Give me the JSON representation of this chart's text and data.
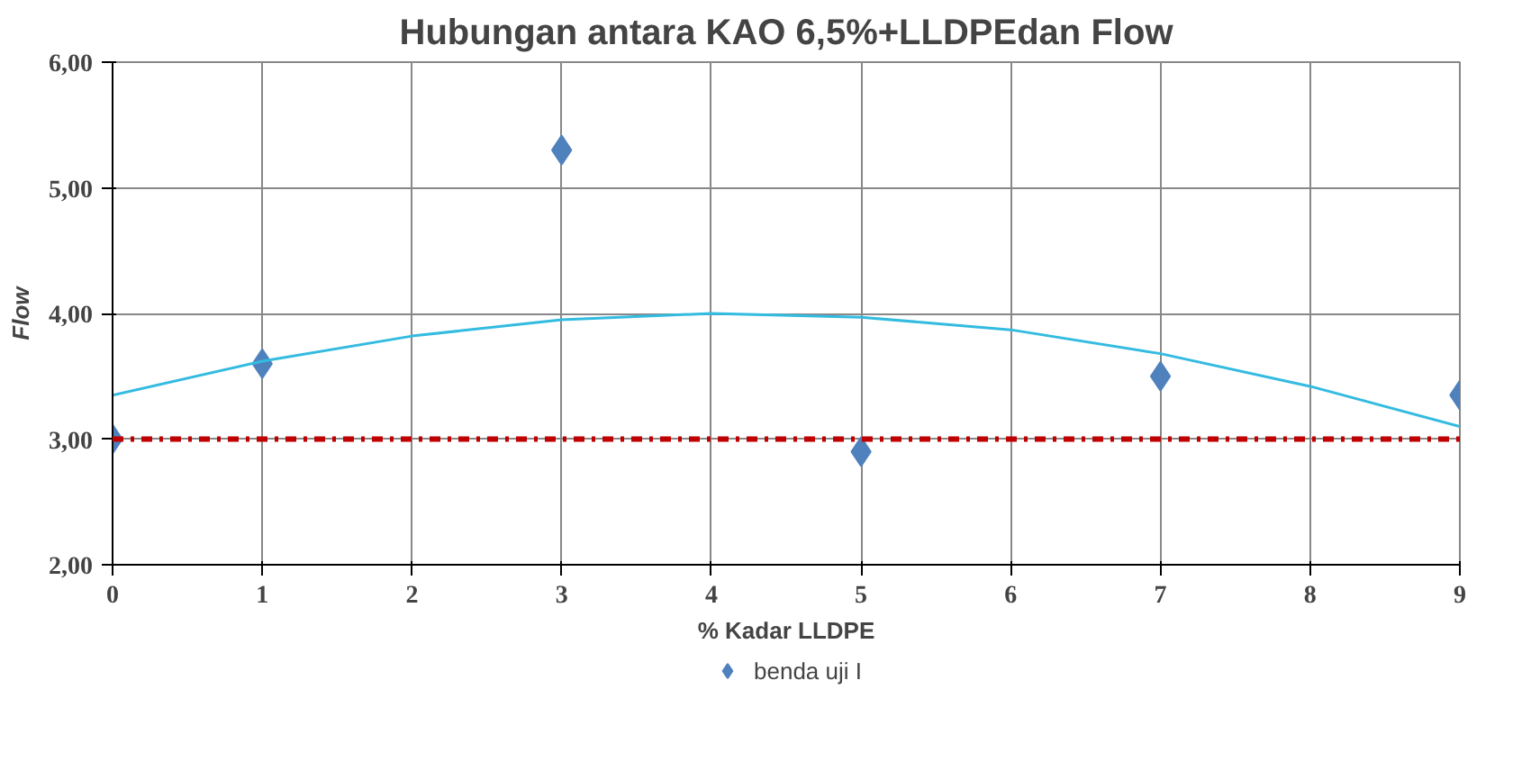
{
  "chart_data": {
    "type": "scatter",
    "title": "Hubungan antara KAO 6,5%+LLDPEdan Flow",
    "xlabel": "% Kadar LLDPE",
    "ylabel": "Flow",
    "xlim": [
      0,
      9
    ],
    "xticks": [
      0,
      1,
      2,
      3,
      4,
      5,
      6,
      7,
      8,
      9
    ],
    "ylim": [
      2,
      6
    ],
    "yticks": [
      {
        "value": 2,
        "label": "2,00"
      },
      {
        "value": 3,
        "label": "3,00"
      },
      {
        "value": 4,
        "label": "4,00"
      },
      {
        "value": 5,
        "label": "5,00"
      },
      {
        "value": 6,
        "label": "6,00"
      }
    ],
    "grid": true,
    "legend": "bottom",
    "series": [
      {
        "name": "benda uji I",
        "color": "#4f81bd",
        "marker": "diamond",
        "x": [
          0,
          1,
          3,
          5,
          7,
          9
        ],
        "values": [
          3.0,
          3.6,
          5.3,
          2.9,
          3.5,
          3.35
        ]
      },
      {
        "type": "line",
        "color": "#33bbe0",
        "x": [
          0,
          1,
          2,
          3,
          4,
          5,
          6,
          7,
          8,
          9
        ],
        "values": [
          3.35,
          3.62,
          3.82,
          3.95,
          4.0,
          3.97,
          3.87,
          3.68,
          3.42,
          3.1
        ]
      }
    ],
    "ref_lines": [
      {
        "axis": "y",
        "value": 3,
        "color": "#c00000",
        "line_style": "dashdot"
      }
    ]
  }
}
